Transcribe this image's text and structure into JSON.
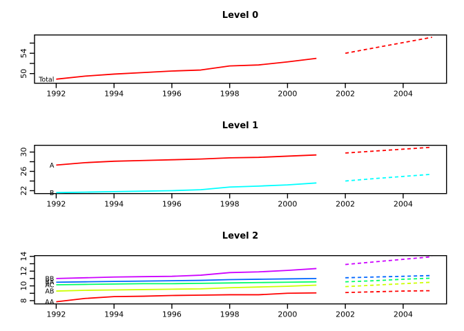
{
  "figure": {
    "background": "#ffffff",
    "axis_color": "#000000",
    "history_line_style": "solid",
    "forecast_line_style": "dashed"
  },
  "chart_data": [
    {
      "type": "line",
      "title": "Level 0",
      "xlim": [
        1991.25,
        2005.5
      ],
      "ylim": [
        48.1,
        57.6
      ],
      "x_ticks": [
        1992,
        1994,
        1996,
        1998,
        2000,
        2002,
        2004
      ],
      "x_tick_labels": [
        "1992",
        "1994",
        "1996",
        "1998",
        "2000",
        "2002",
        "2004"
      ],
      "y_ticks": [
        50,
        52,
        54,
        56
      ],
      "y_tick_labels": [
        "50",
        "",
        "54",
        ""
      ],
      "grid": false,
      "legend": "series labels at line start",
      "series": [
        {
          "name": "Total",
          "color": "#FF0000",
          "history_x_start": 1992,
          "history": [
            48.9,
            49.5,
            49.9,
            50.2,
            50.5,
            50.7,
            51.5,
            51.7,
            52.3,
            53.0
          ],
          "forecast_x_start": 2002,
          "forecast": [
            54.0,
            55.05,
            56.1,
            57.15
          ]
        }
      ]
    },
    {
      "type": "line",
      "title": "Level 1",
      "xlim": [
        1991.25,
        2005.5
      ],
      "ylim": [
        21.4,
        31.4
      ],
      "x_ticks": [
        1992,
        1994,
        1996,
        1998,
        2000,
        2002,
        2004
      ],
      "x_tick_labels": [
        "1992",
        "1994",
        "1996",
        "1998",
        "2000",
        "2002",
        "2004"
      ],
      "y_ticks": [
        22,
        24,
        26,
        28,
        30
      ],
      "y_tick_labels": [
        "22",
        "",
        "26",
        "",
        "30"
      ],
      "grid": false,
      "legend": "series labels at line start",
      "series": [
        {
          "name": "A",
          "color": "#FF0000",
          "history_x_start": 1992,
          "history": [
            27.3,
            27.8,
            28.1,
            28.25,
            28.4,
            28.55,
            28.8,
            28.9,
            29.15,
            29.4
          ],
          "forecast_x_start": 2002,
          "forecast": [
            29.8,
            30.2,
            30.6,
            31.0
          ]
        },
        {
          "name": "B",
          "color": "#00FFFF",
          "history_x_start": 1992,
          "history": [
            21.6,
            21.7,
            21.8,
            21.9,
            22.0,
            22.2,
            22.75,
            22.95,
            23.2,
            23.6
          ],
          "forecast_x_start": 2002,
          "forecast": [
            24.0,
            24.5,
            24.95,
            25.4
          ]
        }
      ]
    },
    {
      "type": "line",
      "title": "Level 2",
      "xlim": [
        1991.25,
        2005.5
      ],
      "ylim": [
        7.56,
        14.1
      ],
      "x_ticks": [
        1992,
        1994,
        1996,
        1998,
        2000,
        2002,
        2004
      ],
      "x_tick_labels": [
        "1992",
        "1994",
        "1996",
        "1998",
        "2000",
        "2002",
        "2004"
      ],
      "y_ticks": [
        8,
        9,
        10,
        11,
        12,
        13,
        14
      ],
      "y_tick_labels": [
        "8",
        "",
        "10",
        "",
        "12",
        "",
        "14"
      ],
      "grid": false,
      "legend": "series labels at line start",
      "series": [
        {
          "name": "AA",
          "color": "#FF0000",
          "history_x_start": 1992,
          "history": [
            7.85,
            8.3,
            8.55,
            8.6,
            8.7,
            8.75,
            8.8,
            8.8,
            9.0,
            9.05
          ],
          "forecast_x_start": 2002,
          "forecast": [
            9.1,
            9.2,
            9.3,
            9.35
          ]
        },
        {
          "name": "AB",
          "color": "#CCFF00",
          "history_x_start": 1992,
          "history": [
            9.3,
            9.4,
            9.45,
            9.5,
            9.55,
            9.6,
            9.75,
            9.85,
            9.95,
            10.1
          ],
          "forecast_x_start": 2002,
          "forecast": [
            9.9,
            10.1,
            10.3,
            10.5
          ]
        },
        {
          "name": "AC",
          "color": "#00FF66",
          "history_x_start": 1992,
          "history": [
            10.15,
            10.2,
            10.25,
            10.3,
            10.3,
            10.35,
            10.4,
            10.45,
            10.5,
            10.55
          ],
          "forecast_x_start": 2002,
          "forecast": [
            10.55,
            10.7,
            10.9,
            11.05
          ]
        },
        {
          "name": "BA",
          "color": "#0066FF",
          "history_x_start": 1992,
          "history": [
            10.5,
            10.55,
            10.6,
            10.65,
            10.7,
            10.75,
            10.85,
            10.9,
            10.95,
            11.0
          ],
          "forecast_x_start": 2002,
          "forecast": [
            11.1,
            11.2,
            11.3,
            11.4
          ]
        },
        {
          "name": "BB",
          "color": "#CC00FF",
          "history_x_start": 1992,
          "history": [
            11.0,
            11.1,
            11.2,
            11.25,
            11.3,
            11.45,
            11.8,
            11.9,
            12.1,
            12.35
          ],
          "forecast_x_start": 2002,
          "forecast": [
            12.9,
            13.25,
            13.6,
            13.95
          ]
        }
      ]
    }
  ]
}
